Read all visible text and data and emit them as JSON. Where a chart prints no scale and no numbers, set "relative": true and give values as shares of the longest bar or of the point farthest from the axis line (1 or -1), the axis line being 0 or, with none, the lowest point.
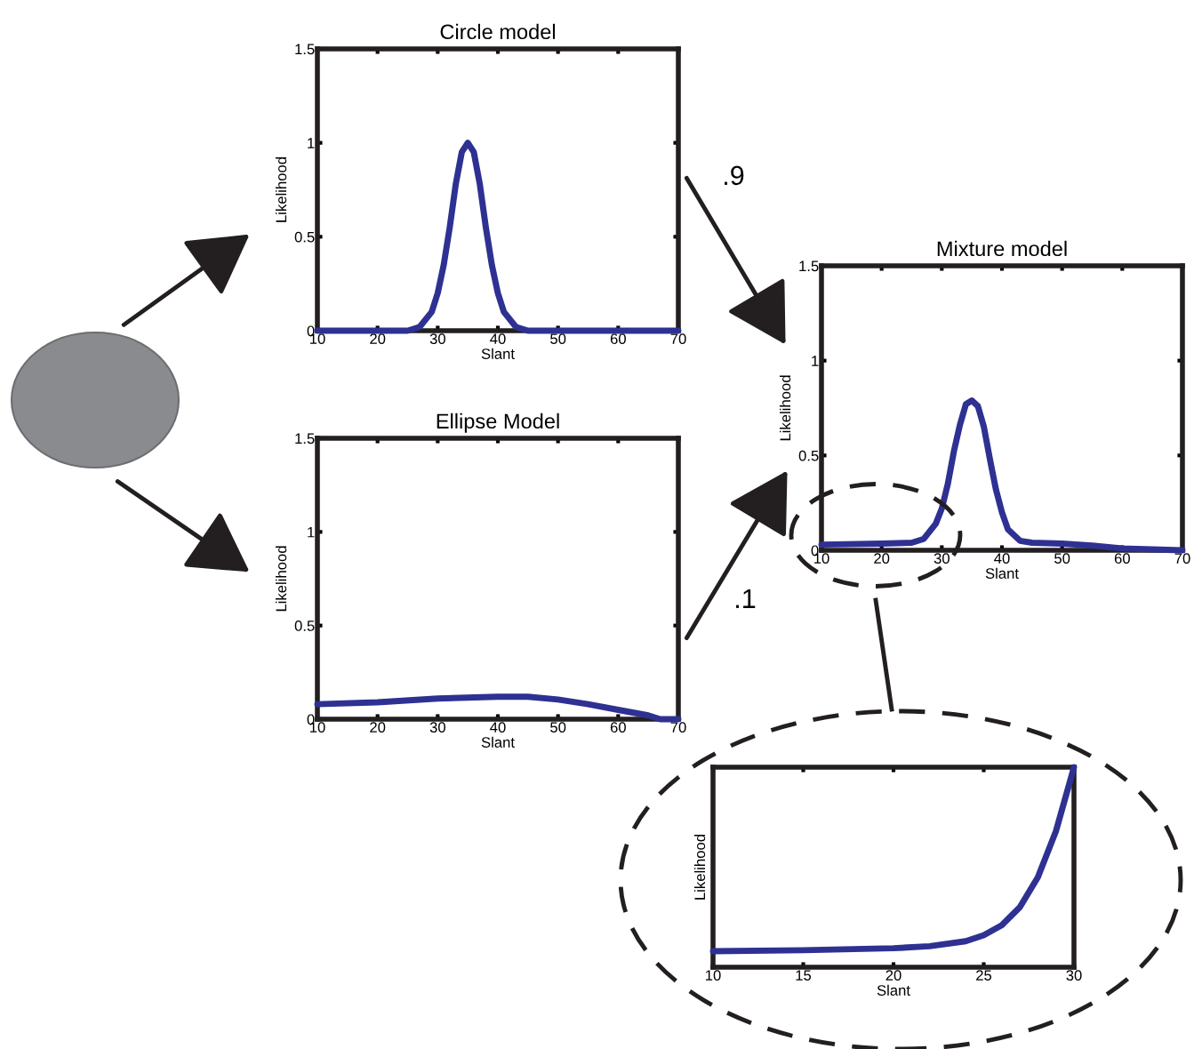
{
  "chart_data": [
    {
      "type": "line",
      "title": "Circle model",
      "xlabel": "Slant",
      "ylabel": "Likelihood",
      "xlim": [
        10,
        70
      ],
      "ylim": [
        0,
        1.5
      ],
      "xticks": [
        10,
        20,
        30,
        40,
        50,
        60,
        70
      ],
      "yticks": [
        0,
        0.5,
        1,
        1.5
      ],
      "grid": false,
      "series": [
        {
          "color": "#2e3192",
          "x": [
            10,
            25,
            27,
            29,
            30,
            31,
            32,
            33,
            34,
            35,
            36,
            37,
            38,
            39,
            40,
            41,
            43,
            45,
            70
          ],
          "values": [
            0,
            0,
            0.02,
            0.1,
            0.2,
            0.35,
            0.55,
            0.78,
            0.95,
            1,
            0.95,
            0.78,
            0.55,
            0.35,
            0.2,
            0.1,
            0.02,
            0,
            0
          ]
        }
      ]
    },
    {
      "type": "line",
      "title": "Ellipse Model",
      "xlabel": "Slant",
      "ylabel": "Likelihood",
      "xlim": [
        10,
        70
      ],
      "ylim": [
        0,
        1.5
      ],
      "xticks": [
        10,
        20,
        30,
        40,
        50,
        60,
        70
      ],
      "yticks": [
        0,
        0.5,
        1,
        1.5
      ],
      "grid": false,
      "series": [
        {
          "color": "#2e3192",
          "x": [
            10,
            20,
            30,
            40,
            45,
            50,
            55,
            60,
            65,
            67,
            70
          ],
          "values": [
            0.08,
            0.09,
            0.11,
            0.12,
            0.12,
            0.105,
            0.08,
            0.05,
            0.02,
            0,
            0
          ]
        }
      ]
    },
    {
      "type": "line",
      "title": "Mixture model",
      "xlabel": "Slant",
      "ylabel": "Likelihood",
      "xlim": [
        10,
        70
      ],
      "ylim": [
        0,
        1.5
      ],
      "xticks": [
        10,
        20,
        30,
        40,
        50,
        60,
        70
      ],
      "yticks": [
        0,
        0.5,
        1,
        1.5
      ],
      "grid": false,
      "annotations": [
        ".9",
        ".1"
      ],
      "series": [
        {
          "color": "#2e3192",
          "x": [
            10,
            20,
            25,
            27,
            29,
            30,
            31,
            32,
            33,
            34,
            35,
            36,
            37,
            38,
            39,
            40,
            41,
            43,
            45,
            50,
            55,
            60,
            65,
            70
          ],
          "values": [
            0.03,
            0.035,
            0.04,
            0.06,
            0.14,
            0.22,
            0.35,
            0.52,
            0.66,
            0.77,
            0.79,
            0.76,
            0.65,
            0.48,
            0.32,
            0.2,
            0.11,
            0.05,
            0.04,
            0.035,
            0.025,
            0.01,
            0.005,
            0
          ]
        }
      ]
    },
    {
      "type": "line",
      "xlabel": "Slant",
      "ylabel": "Likelihood",
      "relative": true,
      "xlim": [
        10,
        30
      ],
      "xticks": [
        10,
        15,
        20,
        25,
        30
      ],
      "tick_labels": "x",
      "grid": false,
      "series": [
        {
          "color": "#2e3192",
          "x": [
            10,
            15,
            20,
            22,
            24,
            25,
            26,
            27,
            28,
            29,
            30
          ],
          "values": [
            0.08,
            0.085,
            0.095,
            0.105,
            0.13,
            0.16,
            0.21,
            0.3,
            0.45,
            0.68,
            1
          ]
        }
      ]
    }
  ]
}
